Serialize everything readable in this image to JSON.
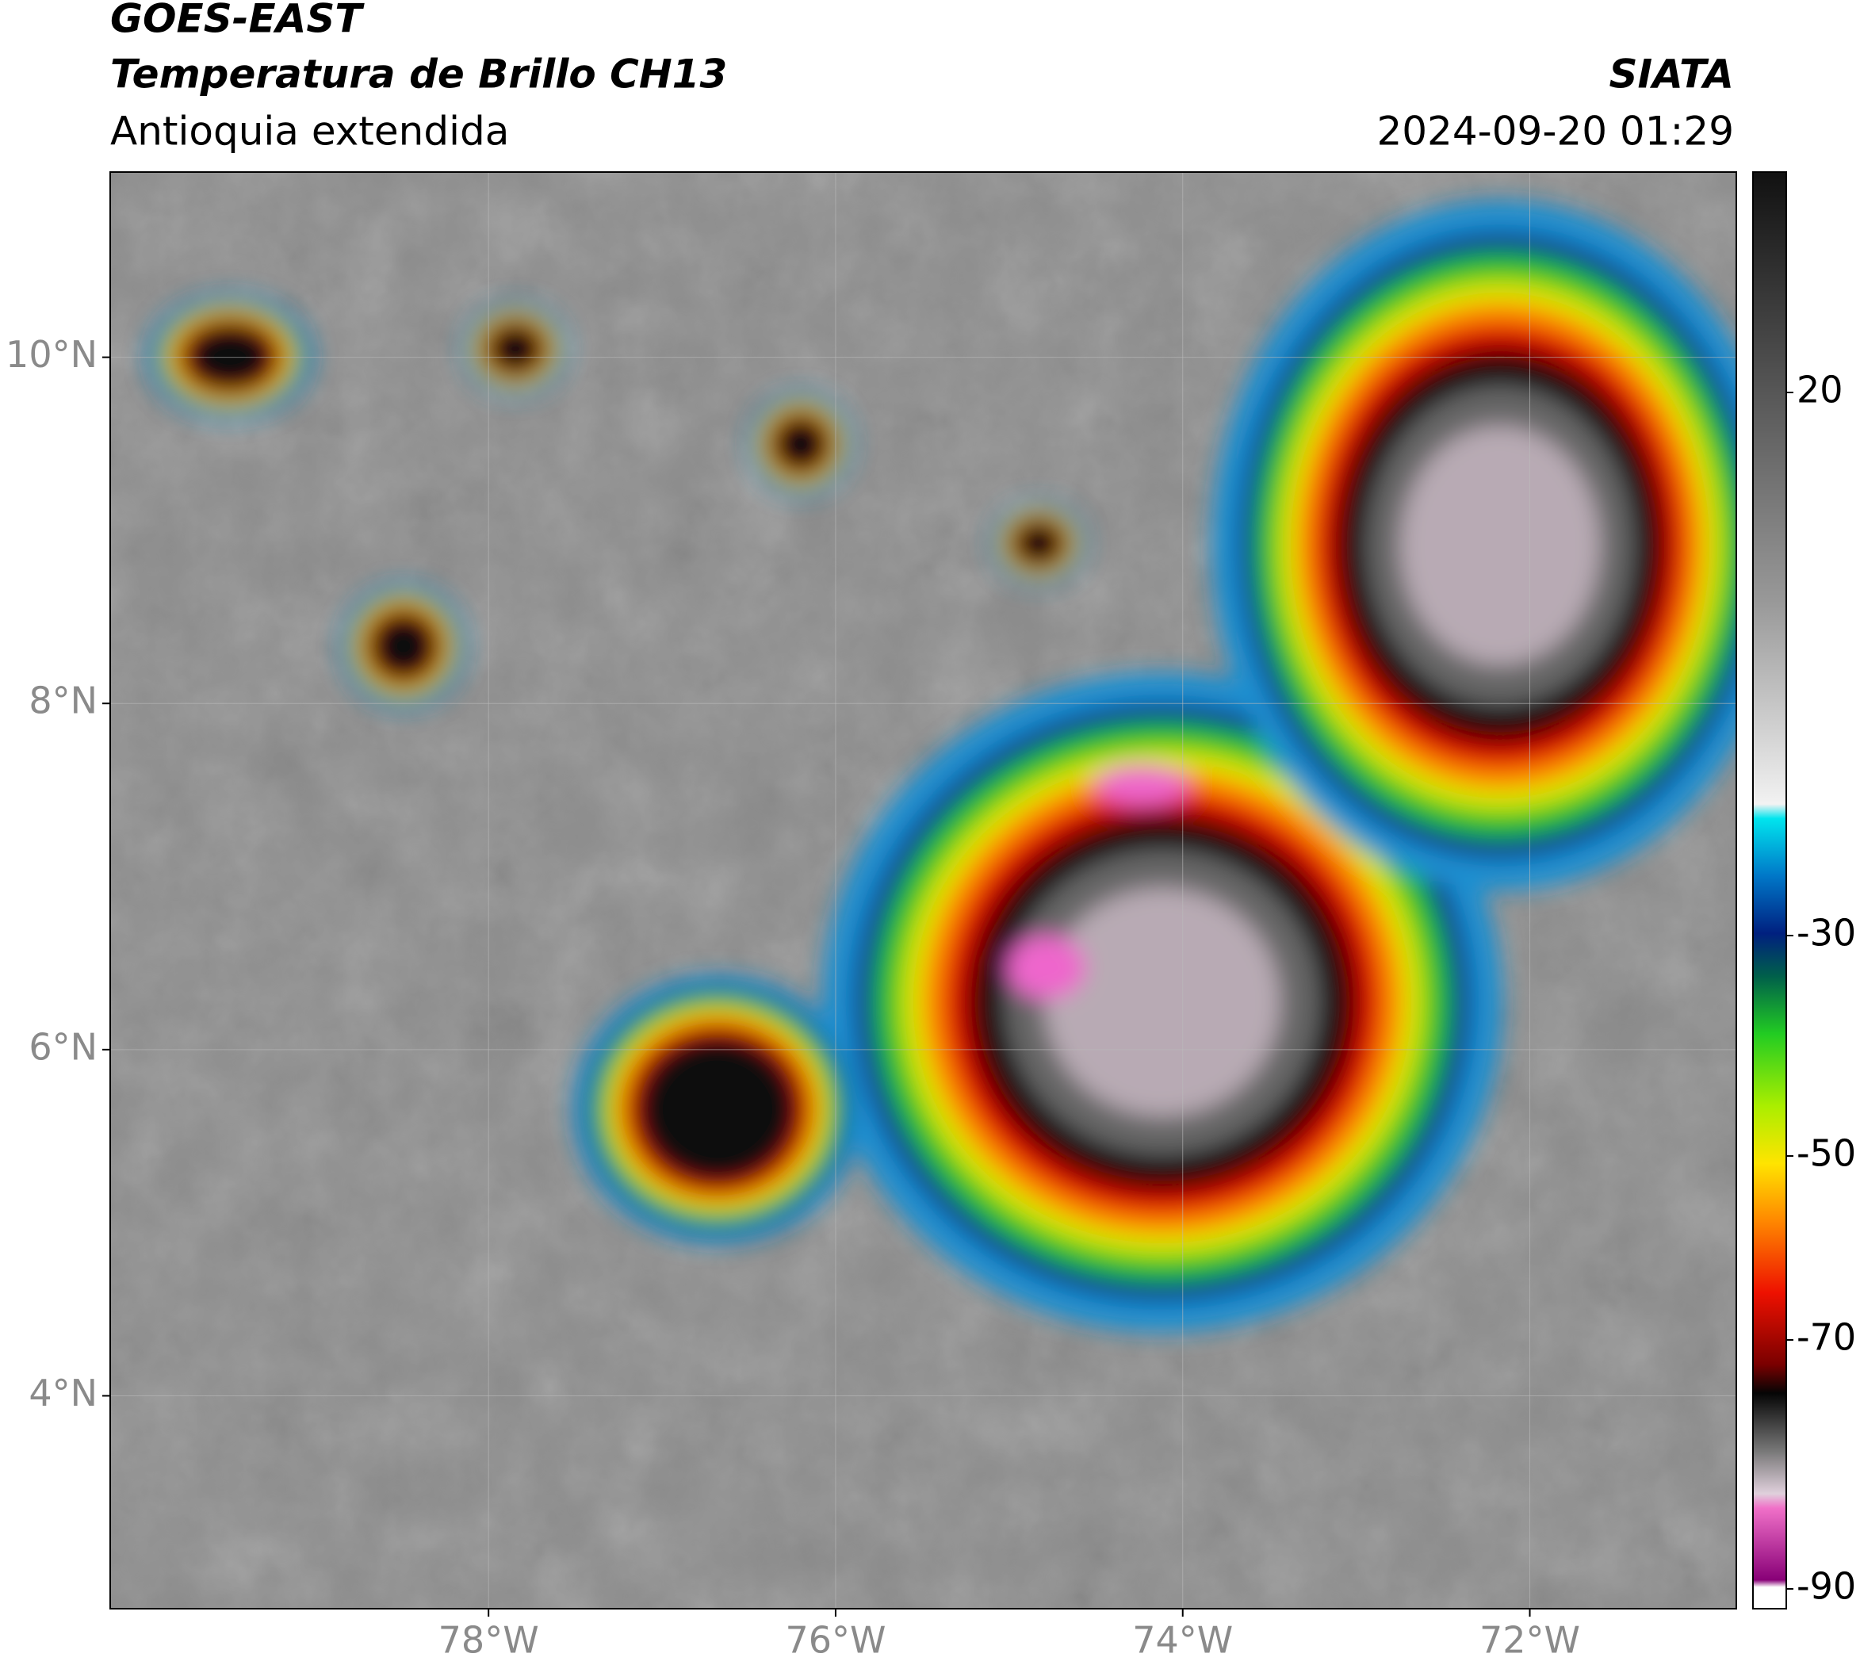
{
  "header": {
    "source": "GOES-EAST",
    "title": "Temperatura de Brillo CH13",
    "region": "Antioquia extendida",
    "agency": "SIATA",
    "datetime": "2024-09-20 01:29"
  },
  "map": {
    "xlim": [
      -80.18,
      -70.81
    ],
    "ylim": [
      2.77,
      11.07
    ],
    "xticks": [
      {
        "value": -78,
        "label": "78°W"
      },
      {
        "value": -76,
        "label": "76°W"
      },
      {
        "value": -74,
        "label": "74°W"
      },
      {
        "value": -72,
        "label": "72°W"
      }
    ],
    "yticks": [
      {
        "value": 10,
        "label": "10°N"
      },
      {
        "value": 8,
        "label": "8°N"
      },
      {
        "value": 6,
        "label": "6°N"
      },
      {
        "value": 4,
        "label": "4°N"
      }
    ],
    "grid": true
  },
  "colorbar": {
    "ticks": [
      20,
      -30,
      -50,
      -70,
      -90
    ]
  }
}
